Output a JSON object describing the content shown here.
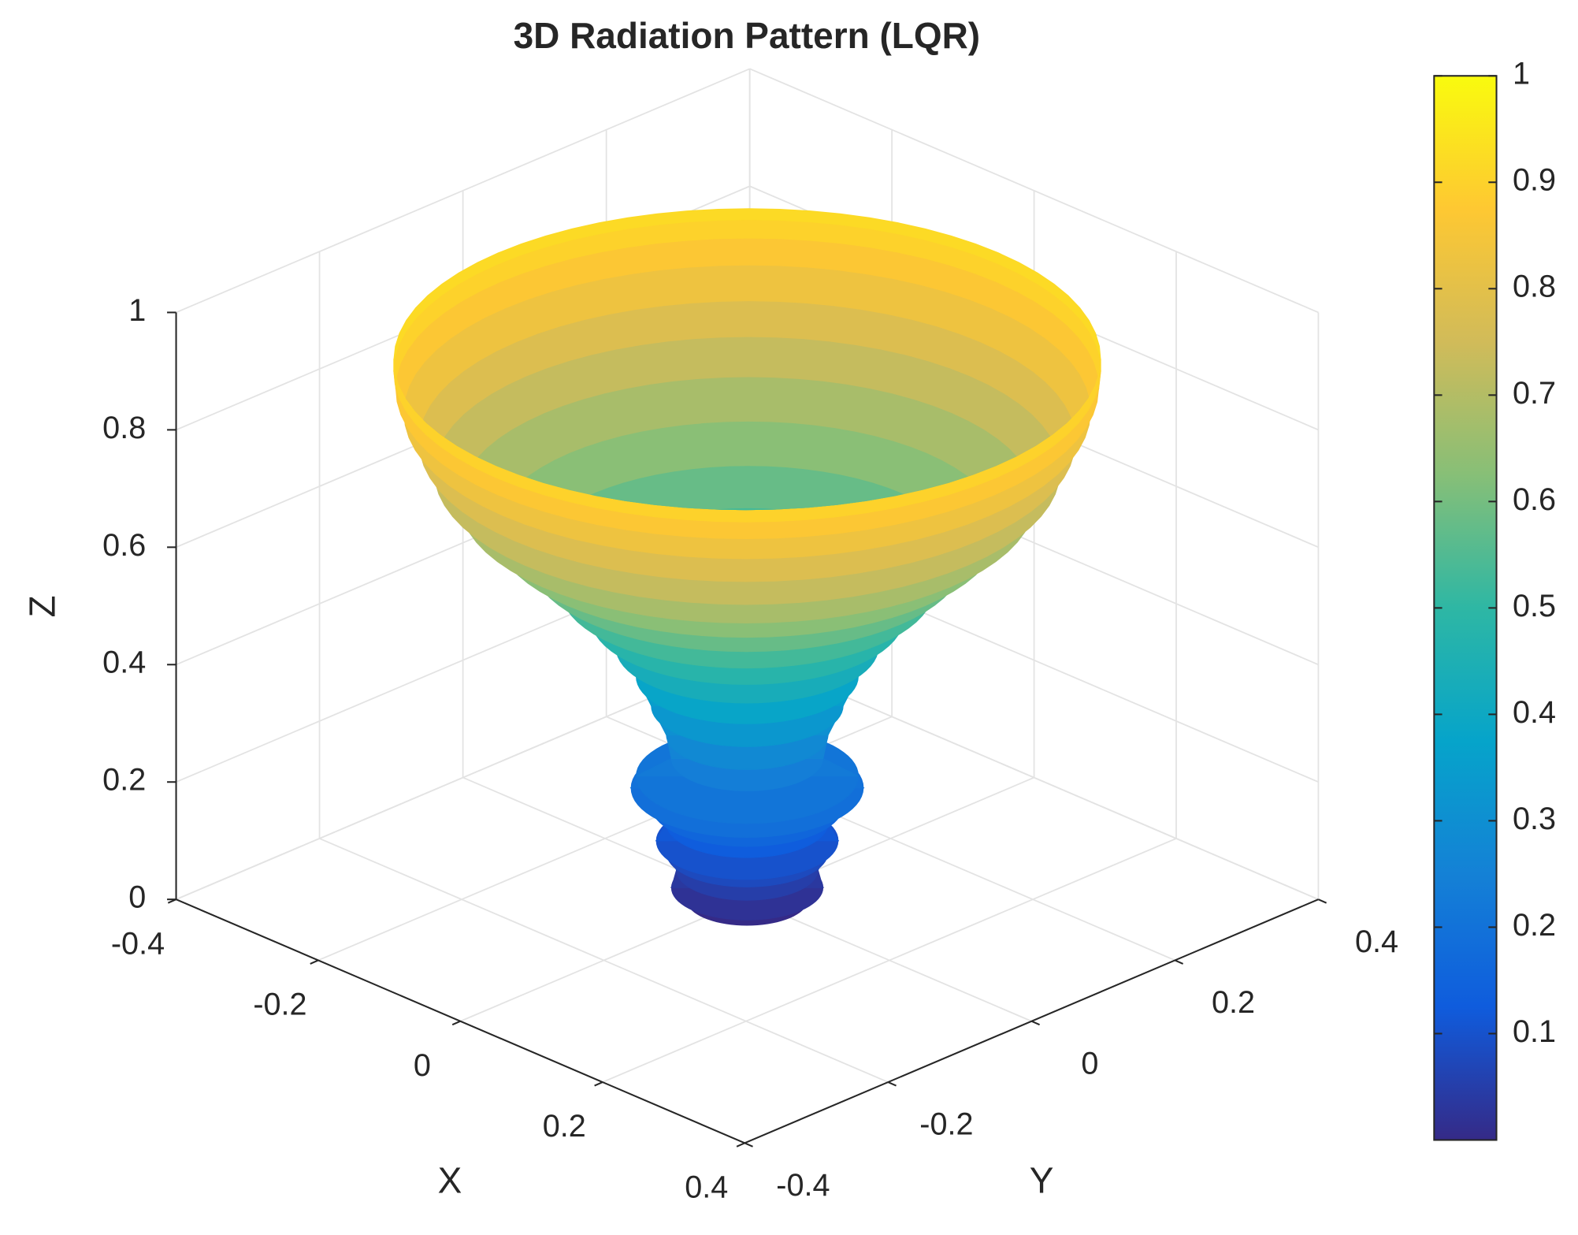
{
  "chart_data": {
    "type": "surface3d",
    "title": "3D Radiation Pattern (LQR)",
    "xlabel": "X",
    "ylabel": "Y",
    "zlabel": "Z",
    "xlim": [
      -0.4,
      0.4
    ],
    "ylim": [
      -0.4,
      0.4
    ],
    "zlim": [
      0,
      1
    ],
    "xticks": [
      -0.4,
      -0.2,
      0,
      0.2,
      0.4
    ],
    "yticks": [
      -0.4,
      -0.2,
      0,
      0.2,
      0.4
    ],
    "zticks": [
      0,
      0.2,
      0.4,
      0.6,
      0.8,
      1
    ],
    "grid": true,
    "colormap": [
      "#352a87",
      "#0f5cdd",
      "#1481d6",
      "#06a4ca",
      "#2eb7a4",
      "#87bf77",
      "#d1bb59",
      "#fec832",
      "#f9fb0e"
    ],
    "clim": [
      0,
      1
    ],
    "colorbar_ticks": [
      0.1,
      0.2,
      0.3,
      0.4,
      0.5,
      0.6,
      0.7,
      0.8,
      0.9,
      1
    ],
    "surface": {
      "z": [
        0,
        0.02,
        0.05,
        0.08,
        0.1,
        0.13,
        0.16,
        0.19,
        0.21,
        0.24,
        0.28,
        0.33,
        0.38,
        0.43,
        0.48,
        0.53,
        0.58,
        0.63,
        0.68,
        0.73,
        0.78,
        0.83,
        0.87,
        0.9,
        0.92
      ],
      "radius": [
        0.06,
        0.075,
        0.07,
        0.08,
        0.09,
        0.08,
        0.095,
        0.115,
        0.11,
        0.075,
        0.08,
        0.095,
        0.11,
        0.13,
        0.155,
        0.185,
        0.215,
        0.25,
        0.285,
        0.31,
        0.325,
        0.34,
        0.348,
        0.35,
        0.35
      ]
    }
  }
}
